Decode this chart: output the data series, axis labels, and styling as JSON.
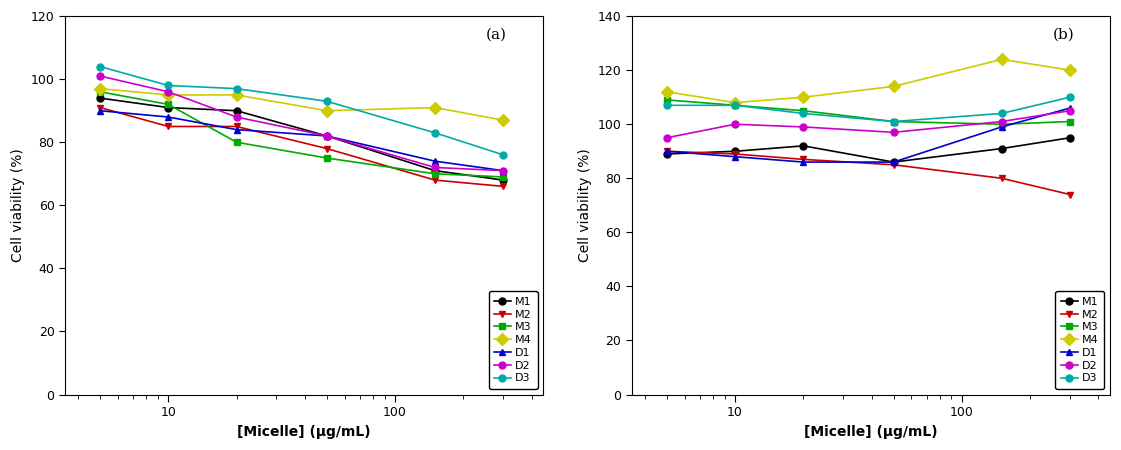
{
  "x_values": [
    5,
    10,
    20,
    50,
    150,
    300
  ],
  "panel_a": {
    "title": "(a)",
    "ylim": [
      0,
      120
    ],
    "yticks": [
      0,
      20,
      40,
      60,
      80,
      100,
      120
    ],
    "series": {
      "M1": [
        94,
        91,
        90,
        82,
        71,
        68
      ],
      "M2": [
        91,
        85,
        85,
        78,
        68,
        66
      ],
      "M3": [
        96,
        92,
        80,
        75,
        70,
        69
      ],
      "M4": [
        97,
        95,
        95,
        90,
        91,
        87
      ],
      "D1": [
        90,
        88,
        84,
        82,
        74,
        71
      ],
      "D2": [
        101,
        96,
        88,
        82,
        72,
        71
      ],
      "D3": [
        104,
        98,
        97,
        93,
        83,
        76
      ]
    }
  },
  "panel_b": {
    "title": "(b)",
    "ylim": [
      0,
      140
    ],
    "yticks": [
      0,
      20,
      40,
      60,
      80,
      100,
      120,
      140
    ],
    "series": {
      "M1": [
        89,
        90,
        92,
        86,
        91,
        95
      ],
      "M2": [
        90,
        89,
        87,
        85,
        80,
        74
      ],
      "M3": [
        109,
        107,
        105,
        101,
        100,
        101
      ],
      "M4": [
        112,
        108,
        110,
        114,
        124,
        120
      ],
      "D1": [
        90,
        88,
        86,
        86,
        99,
        106
      ],
      "D2": [
        95,
        100,
        99,
        97,
        101,
        105
      ],
      "D3": [
        107,
        107,
        104,
        101,
        104,
        110
      ]
    }
  },
  "series_styles": {
    "M1": {
      "color": "#000000",
      "marker": "o",
      "linestyle": "-",
      "markersize": 5
    },
    "M2": {
      "color": "#cc0000",
      "marker": "v",
      "linestyle": "-",
      "markersize": 5
    },
    "M3": {
      "color": "#00aa00",
      "marker": "s",
      "linestyle": "-",
      "markersize": 5
    },
    "M4": {
      "color": "#cccc00",
      "marker": "D",
      "linestyle": "-",
      "markersize": 6
    },
    "D1": {
      "color": "#0000cc",
      "marker": "^",
      "linestyle": "-",
      "markersize": 5
    },
    "D2": {
      "color": "#cc00cc",
      "marker": "o",
      "linestyle": "-",
      "markersize": 5
    },
    "D3": {
      "color": "#00aaaa",
      "marker": "o",
      "linestyle": "-",
      "markersize": 5
    }
  },
  "xlabel": "[Micelle] (μg/mL)",
  "ylabel": "Cell viability (%)",
  "series_order": [
    "M1",
    "M2",
    "M3",
    "M4",
    "D1",
    "D2",
    "D3"
  ],
  "xlim": [
    3.5,
    450
  ],
  "figsize": [
    11.21,
    4.5
  ],
  "dpi": 100
}
